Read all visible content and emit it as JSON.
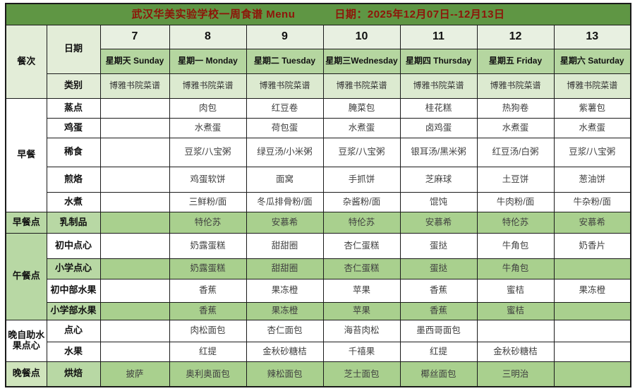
{
  "title": {
    "text": "武汉华美实验学校一周食谱  Menu",
    "date": "日期：2025年12月07日--12月13日"
  },
  "colors": {
    "banner_green": "#5f9644",
    "title_red": "#8e1409",
    "date_row_bg": "#e8f0e1",
    "day_row_bg": "#b5d6a0",
    "category_row_bg": "#dcead0",
    "label_bg": "#e3edd8",
    "band_green": "#a9d08e",
    "section_green": "#b8d8a4",
    "dinner_green": "#cfe4bc",
    "cell_text": "#3f3f3f"
  },
  "header": {
    "meal_col_label": "餐次",
    "date_row_label": "日期",
    "category_row_label": "类别",
    "dates": [
      "7",
      "8",
      "9",
      "10",
      "11",
      "12",
      "13"
    ],
    "days": [
      "星期天 Sunday",
      "星期一 Monday",
      "星期二 Tuesday",
      "星期三Wednesday",
      "星期四 Thursday",
      "星期五 Friday",
      "星期六 Saturday"
    ],
    "categories": [
      "博雅书院菜谱",
      "博雅书院菜谱",
      "博雅书院菜谱",
      "博雅书院菜谱",
      "博雅书院菜谱",
      "博雅书院菜谱",
      "博雅书院菜谱"
    ]
  },
  "sections": [
    {
      "name": "早餐",
      "band": "white",
      "rows": [
        {
          "label": "蒸点",
          "band": "white",
          "cells": [
            "",
            "肉包",
            "红豆卷",
            "腌菜包",
            "桂花糕",
            "热狗卷",
            "紫薯包"
          ]
        },
        {
          "label": "鸡蛋",
          "band": "white",
          "cells": [
            "",
            "水煮蛋",
            "荷包蛋",
            "水煮蛋",
            "卤鸡蛋",
            "水煮蛋",
            "水煮蛋"
          ]
        },
        {
          "label": "稀食",
          "band": "white",
          "cells": [
            "",
            "豆浆/八宝粥",
            "绿豆汤/小米粥",
            "豆浆/八宝粥",
            "银耳汤/黑米粥",
            "红豆汤/白粥",
            "豆浆/八宝粥"
          ]
        },
        {
          "label": "煎烙",
          "band": "white",
          "cells": [
            "",
            "鸡蛋软饼",
            "面窝",
            "手抓饼",
            "芝麻球",
            "土豆饼",
            "葱油饼"
          ]
        },
        {
          "label": "水煮",
          "band": "white",
          "cells": [
            "",
            "三鲜粉/面",
            "冬瓜排骨粉/面",
            "杂酱粉/面",
            "馄饨",
            "牛肉粉/面",
            "牛杂粉/面"
          ]
        }
      ]
    },
    {
      "name": "早餐点",
      "band": "green",
      "rows": [
        {
          "label": "乳制品",
          "band": "green",
          "cells": [
            "",
            "特伦苏",
            "安慕希",
            "特伦苏",
            "安慕希",
            "特伦苏",
            "安慕希"
          ]
        }
      ]
    },
    {
      "name": "午餐点",
      "band": "green",
      "rows": [
        {
          "label": "初中点心",
          "band": "white",
          "cells": [
            "",
            "奶露蛋糕",
            "甜甜圈",
            "杏仁蛋糕",
            "蛋挞",
            "牛角包",
            "奶香片"
          ]
        },
        {
          "label": "小学点心",
          "band": "green",
          "cells": [
            "",
            "奶露蛋糕",
            "甜甜圈",
            "杏仁蛋糕",
            "蛋挞",
            "牛角包",
            ""
          ]
        },
        {
          "label": "初中部水果",
          "band": "white",
          "cells": [
            "",
            "香蕉",
            "果冻橙",
            "苹果",
            "香蕉",
            "蜜桔",
            "果冻橙"
          ]
        },
        {
          "label": "小学部水果",
          "band": "green",
          "cells": [
            "",
            "香蕉",
            "果冻橙",
            "苹果",
            "香蕉",
            "蜜桔",
            ""
          ]
        }
      ]
    },
    {
      "name": "晚自助水果点心",
      "band": "white",
      "rows": [
        {
          "label": "点心",
          "band": "white",
          "cells": [
            "",
            "肉松面包",
            "杏仁面包",
            "海苔肉松",
            "墨西哥面包",
            "",
            ""
          ]
        },
        {
          "label": "水果",
          "band": "white",
          "cells": [
            "",
            "红提",
            "金秋砂糖桔",
            "千禧果",
            "红提",
            "金秋砂糖桔",
            ""
          ]
        }
      ]
    },
    {
      "name": "晚餐点",
      "band": "dinner",
      "rows": [
        {
          "label": "烘焙",
          "band": "green",
          "cells": [
            "披萨",
            "奥利奥面包",
            "辣松面包",
            "芝士面包",
            "椰丝面包",
            "三明治",
            ""
          ]
        }
      ]
    }
  ]
}
